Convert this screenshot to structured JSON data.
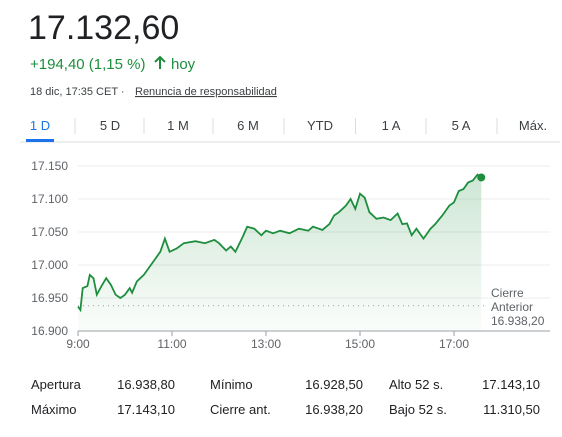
{
  "header": {
    "price": "17.132,60",
    "change": "+194,40 (1,15 %)",
    "period": "hoy",
    "timestamp": "18 dic, 17:35 CET ·",
    "disclaimer": "Renuncia de responsabilidad"
  },
  "tabs": {
    "items": [
      "1 D",
      "5 D",
      "1 M",
      "6 M",
      "YTD",
      "1 A",
      "5 A",
      "Máx."
    ],
    "selected": 0
  },
  "chart_data": {
    "type": "line",
    "color": "#1e8e3e",
    "grid": true,
    "series": [
      {
        "color": "#1e8e3e",
        "x": [
          9.0,
          9.05,
          9.1,
          9.2,
          9.25,
          9.33,
          9.4,
          9.5,
          9.6,
          9.7,
          9.8,
          9.9,
          10.0,
          10.1,
          10.15,
          10.25,
          10.4,
          10.55,
          10.75,
          10.85,
          10.95,
          11.1,
          11.25,
          11.5,
          11.7,
          11.9,
          12.0,
          12.15,
          12.25,
          12.35,
          12.5,
          12.6,
          12.75,
          12.9,
          13.0,
          13.15,
          13.3,
          13.5,
          13.7,
          13.9,
          14.0,
          14.2,
          14.35,
          14.45,
          14.55,
          14.7,
          14.8,
          14.9,
          15.0,
          15.1,
          15.2,
          15.35,
          15.5,
          15.65,
          15.8,
          15.9,
          16.0,
          16.1,
          16.2,
          16.35,
          16.5,
          16.6,
          16.75,
          16.9,
          17.0,
          17.1,
          17.2,
          17.3,
          17.4,
          17.5,
          17.58
        ],
        "values": [
          16937,
          16932,
          16965,
          16968,
          16985,
          16980,
          16955,
          16968,
          16980,
          16970,
          16955,
          16950,
          16955,
          16965,
          16958,
          16975,
          16985,
          17000,
          17020,
          17040,
          17020,
          17025,
          17033,
          17036,
          17033,
          17038,
          17033,
          17022,
          17028,
          17020,
          17042,
          17058,
          17055,
          17045,
          17052,
          17048,
          17052,
          17048,
          17055,
          17052,
          17058,
          17053,
          17062,
          17075,
          17080,
          17090,
          17100,
          17085,
          17108,
          17102,
          17080,
          17070,
          17072,
          17068,
          17078,
          17062,
          17063,
          17045,
          17055,
          17040,
          17055,
          17062,
          17075,
          17090,
          17095,
          17112,
          17115,
          17125,
          17128,
          17137,
          17132.6
        ]
      }
    ],
    "xlim": [
      9,
      19
    ],
    "xticks": [
      {
        "value": 9,
        "label": "9:00"
      },
      {
        "value": 11,
        "label": "11:00"
      },
      {
        "value": 13,
        "label": "13:00"
      },
      {
        "value": 15,
        "label": "15:00"
      },
      {
        "value": 17,
        "label": "17:00"
      }
    ],
    "ylim": [
      16900,
      17150
    ],
    "yticks": [
      {
        "value": 16900,
        "label": "16.900"
      },
      {
        "value": 16950,
        "label": "16.950"
      },
      {
        "value": 17000,
        "label": "17.000"
      },
      {
        "value": 17050,
        "label": "17.050"
      },
      {
        "value": 17100,
        "label": "17.100"
      },
      {
        "value": 17150,
        "label": "17.150"
      }
    ],
    "reference_line": {
      "value": 16938.2,
      "label": [
        "Cierre",
        "Anterior",
        "16.938,20"
      ]
    }
  },
  "stats": [
    [
      [
        "Apertura",
        "16.938,80"
      ],
      [
        "Mínimo",
        "16.928,50"
      ],
      [
        "Alto 52 s.",
        "17.143,10"
      ]
    ],
    [
      [
        "Máximo",
        "17.143,10"
      ],
      [
        "Cierre ant.",
        "16.938,20"
      ],
      [
        "Bajo 52 s.",
        "11.310,50"
      ]
    ]
  ]
}
